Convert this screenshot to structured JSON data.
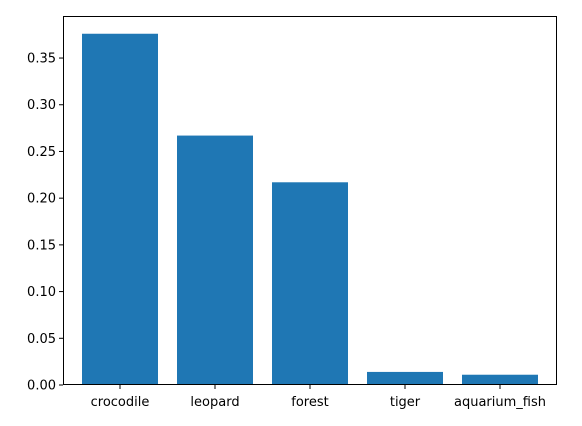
{
  "chart_data": {
    "type": "bar",
    "title": "",
    "xlabel": "",
    "ylabel": "",
    "categories": [
      "crocodile",
      "leopard",
      "forest",
      "tiger",
      "aquarium_fish"
    ],
    "values": [
      0.376,
      0.267,
      0.217,
      0.014,
      0.011
    ],
    "ylim": [
      0,
      0.395
    ],
    "y_ticks": [
      0.0,
      0.05,
      0.1,
      0.15,
      0.2,
      0.25,
      0.3,
      0.35
    ],
    "y_tick_labels": [
      "0.00",
      "0.05",
      "0.10",
      "0.15",
      "0.20",
      "0.25",
      "0.30",
      "0.35"
    ],
    "bar_color": "#1f77b4",
    "grid": false,
    "legend": null
  }
}
